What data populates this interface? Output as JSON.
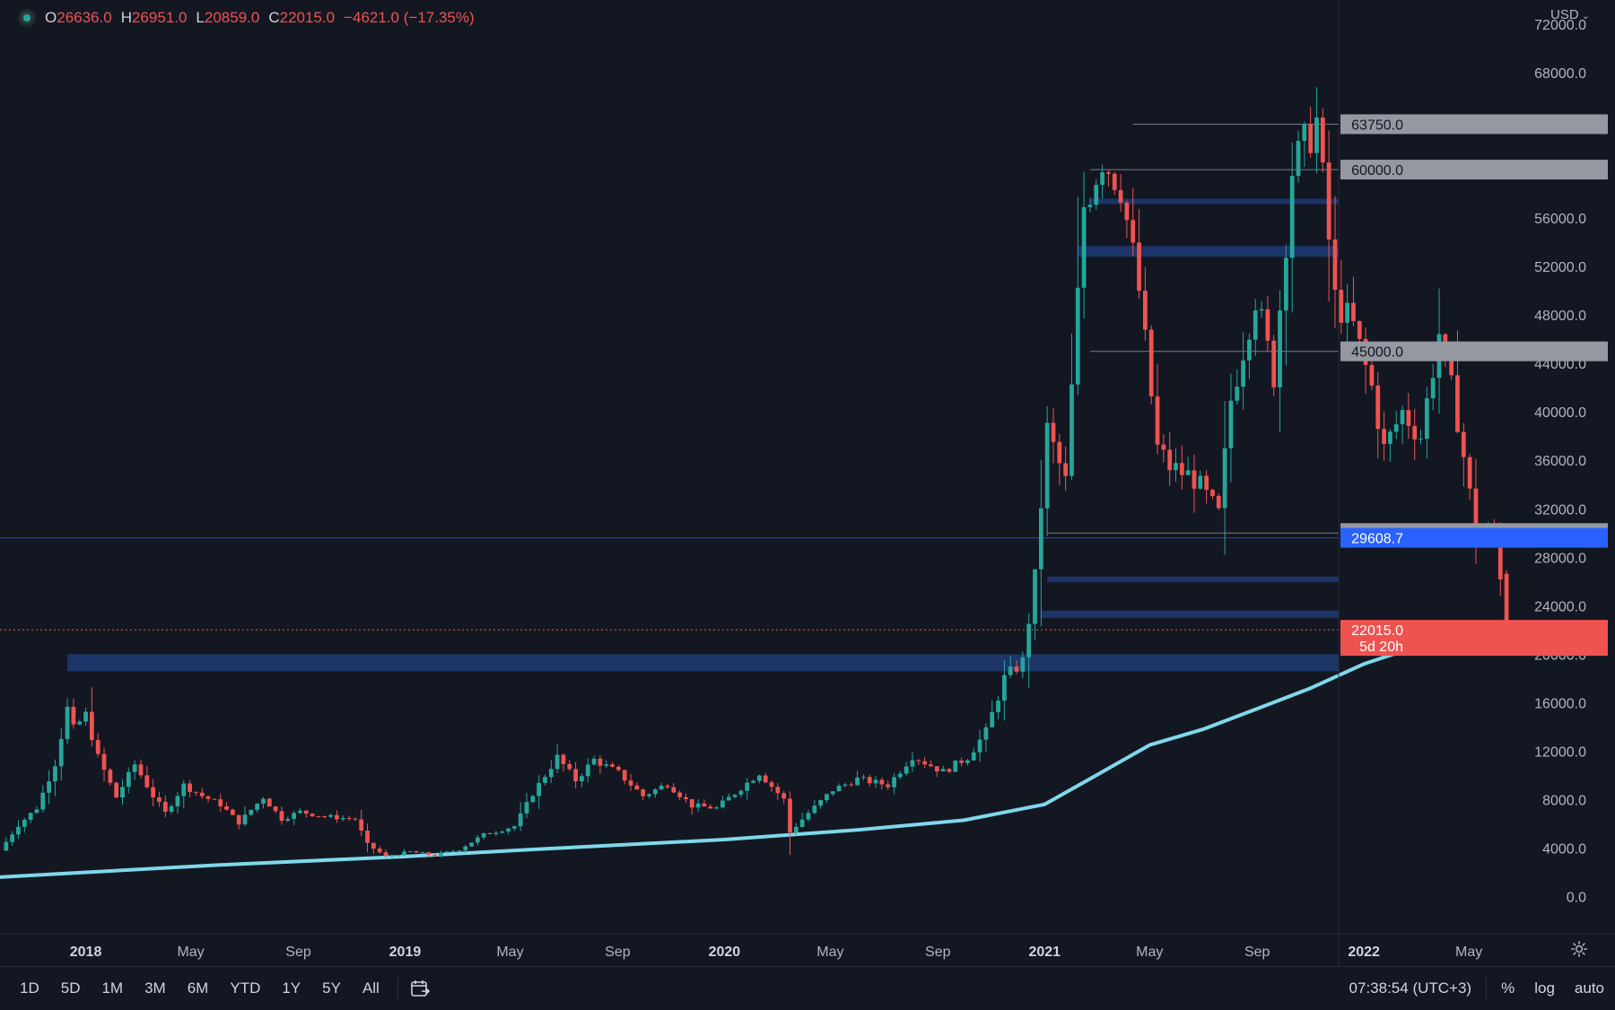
{
  "header": {
    "ohlc": [
      {
        "label": "O",
        "value": "26636.0"
      },
      {
        "label": "H",
        "value": "26951.0"
      },
      {
        "label": "L",
        "value": "20859.0"
      },
      {
        "label": "C",
        "value": "22015.0"
      }
    ],
    "change": "−4621.0 (−17.35%)",
    "currency": "USD"
  },
  "chart_data": {
    "type": "candlestick",
    "title": "",
    "interval": "1W",
    "ylim": [
      -3000,
      74000
    ],
    "xlim": [
      "2017-09-25",
      "2022-10-15"
    ],
    "y_ticks": [
      0,
      4000,
      8000,
      12000,
      16000,
      20000,
      24000,
      28000,
      32000,
      36000,
      40000,
      44000,
      48000,
      52000,
      56000,
      60000,
      64000,
      68000,
      72000
    ],
    "y_tick_labels": [
      "0.0",
      "4000.0",
      "8000.0",
      "12000.0",
      "16000.0",
      "20000.0",
      "24000.0",
      "28000.0",
      "32000.0",
      "36000.0",
      "40000.0",
      "44000.0",
      "48000.0",
      "52000.0",
      "56000.0",
      "60000.0",
      "64000.0",
      "68000.0",
      "72000.0"
    ],
    "x_ticks": [
      {
        "date": "2018-01-01",
        "label": "2018",
        "bold": true
      },
      {
        "date": "2018-05-01",
        "label": "May",
        "bold": false
      },
      {
        "date": "2018-09-01",
        "label": "Sep",
        "bold": false
      },
      {
        "date": "2019-01-01",
        "label": "2019",
        "bold": true
      },
      {
        "date": "2019-05-01",
        "label": "May",
        "bold": false
      },
      {
        "date": "2019-09-01",
        "label": "Sep",
        "bold": false
      },
      {
        "date": "2020-01-01",
        "label": "2020",
        "bold": true
      },
      {
        "date": "2020-05-01",
        "label": "May",
        "bold": false
      },
      {
        "date": "2020-09-01",
        "label": "Sep",
        "bold": false
      },
      {
        "date": "2021-01-01",
        "label": "2021",
        "bold": true
      },
      {
        "date": "2021-05-01",
        "label": "May",
        "bold": false
      },
      {
        "date": "2021-09-01",
        "label": "Sep",
        "bold": false
      },
      {
        "date": "2022-01-01",
        "label": "2022",
        "bold": true
      },
      {
        "date": "2022-05-01",
        "label": "May",
        "bold": false
      }
    ],
    "price_path": [
      [
        "2017-09-25",
        3800
      ],
      [
        "2017-10-16",
        5900
      ],
      [
        "2017-11-06",
        7300
      ],
      [
        "2017-11-27",
        11000
      ],
      [
        "2017-12-11",
        15500
      ],
      [
        "2017-12-18",
        13800
      ],
      [
        "2018-01-01",
        15000
      ],
      [
        "2018-01-15",
        11500
      ],
      [
        "2018-02-05",
        8200
      ],
      [
        "2018-02-26",
        10900
      ],
      [
        "2018-03-19",
        8300
      ],
      [
        "2018-04-02",
        6900
      ],
      [
        "2018-04-23",
        9200
      ],
      [
        "2018-05-14",
        8300
      ],
      [
        "2018-06-04",
        7600
      ],
      [
        "2018-06-25",
        6100
      ],
      [
        "2018-07-23",
        8200
      ],
      [
        "2018-08-13",
        6400
      ],
      [
        "2018-09-03",
        7000
      ],
      [
        "2018-10-01",
        6600
      ],
      [
        "2018-11-05",
        6400
      ],
      [
        "2018-11-19",
        4300
      ],
      [
        "2018-12-10",
        3300
      ],
      [
        "2019-01-07",
        3700
      ],
      [
        "2019-02-04",
        3400
      ],
      [
        "2019-03-04",
        3900
      ],
      [
        "2019-04-01",
        5100
      ],
      [
        "2019-05-06",
        5800
      ],
      [
        "2019-05-27",
        8500
      ],
      [
        "2019-06-24",
        11500
      ],
      [
        "2019-07-15",
        9600
      ],
      [
        "2019-08-05",
        11300
      ],
      [
        "2019-09-02",
        10200
      ],
      [
        "2019-09-30",
        8300
      ],
      [
        "2019-10-28",
        9300
      ],
      [
        "2019-11-25",
        7500
      ],
      [
        "2019-12-23",
        7300
      ],
      [
        "2020-02-10",
        10200
      ],
      [
        "2020-03-09",
        8000
      ],
      [
        "2020-03-16",
        5300
      ],
      [
        "2020-04-06",
        6900
      ],
      [
        "2020-05-04",
        8800
      ],
      [
        "2020-06-01",
        9700
      ],
      [
        "2020-07-06",
        9200
      ],
      [
        "2020-08-03",
        11600
      ],
      [
        "2020-09-07",
        10300
      ],
      [
        "2020-10-05",
        11500
      ],
      [
        "2020-10-26",
        13600
      ],
      [
        "2020-11-16",
        18000
      ],
      [
        "2020-12-07",
        19400
      ],
      [
        "2020-12-21",
        26300
      ],
      [
        "2021-01-04",
        38500
      ],
      [
        "2021-01-25",
        34200
      ],
      [
        "2021-02-15",
        57000
      ],
      [
        "2021-03-08",
        61000
      ],
      [
        "2021-03-29",
        58700
      ],
      [
        "2021-04-19",
        50000
      ],
      [
        "2021-05-10",
        37000
      ],
      [
        "2021-05-24",
        35500
      ],
      [
        "2021-06-21",
        34500
      ],
      [
        "2021-07-19",
        31500
      ],
      [
        "2021-08-02",
        41000
      ],
      [
        "2021-08-30",
        49500
      ],
      [
        "2021-09-20",
        43000
      ],
      [
        "2021-10-11",
        60000
      ],
      [
        "2021-11-08",
        64000
      ],
      [
        "2021-11-29",
        49300
      ],
      [
        "2021-12-20",
        47000
      ],
      [
        "2022-01-10",
        42000
      ],
      [
        "2022-01-24",
        36900
      ],
      [
        "2022-02-14",
        40000
      ],
      [
        "2022-03-07",
        38000
      ],
      [
        "2022-03-28",
        46500
      ],
      [
        "2022-04-18",
        39500
      ],
      [
        "2022-05-09",
        30000
      ],
      [
        "2022-05-30",
        29900
      ],
      [
        "2022-06-06",
        26600
      ],
      [
        "2022-06-13",
        22015
      ]
    ],
    "last_candle": {
      "date": "2022-06-13",
      "open": 26636.0,
      "high": 26951.0,
      "low": 20859.0,
      "close": 22015.0
    },
    "moving_average": [
      [
        "2017-09-25",
        1600
      ],
      [
        "2018-01-01",
        2000
      ],
      [
        "2018-06-01",
        2600
      ],
      [
        "2019-01-01",
        3300
      ],
      [
        "2019-06-01",
        3900
      ],
      [
        "2020-01-01",
        4700
      ],
      [
        "2020-06-01",
        5500
      ],
      [
        "2020-10-01",
        6300
      ],
      [
        "2021-01-01",
        7600
      ],
      [
        "2021-03-01",
        10000
      ],
      [
        "2021-05-01",
        12500
      ],
      [
        "2021-07-01",
        13800
      ],
      [
        "2021-09-01",
        15500
      ],
      [
        "2021-11-01",
        17200
      ],
      [
        "2022-01-01",
        19200
      ],
      [
        "2022-03-01",
        20600
      ],
      [
        "2022-05-01",
        21500
      ],
      [
        "2022-06-13",
        22300
      ]
    ],
    "support_zones": [
      {
        "from": 18600,
        "to": 20000,
        "start": "2017-12-11"
      },
      {
        "from": 23000,
        "to": 23600,
        "start": "2020-12-28"
      },
      {
        "from": 26000,
        "to": 26400,
        "start": "2021-01-04"
      },
      {
        "from": 52800,
        "to": 53700,
        "start": "2021-02-08"
      },
      {
        "from": 57200,
        "to": 57600,
        "start": "2021-02-22"
      }
    ],
    "horizontal_lines": [
      {
        "value": 63750,
        "label": "63750.0",
        "start": "2021-04-12"
      },
      {
        "value": 60000,
        "label": "60000.0",
        "start": "2021-02-22"
      },
      {
        "value": 45000,
        "label": "45000.0",
        "start": "2021-02-22"
      },
      {
        "value": 30000,
        "label": "30000.0",
        "start": "2021-01-04"
      }
    ],
    "price_line": {
      "value": 29608.7,
      "label": "29608.7",
      "color": "#2962ff"
    },
    "last_price": {
      "value": 22015.0,
      "label": "22015.0",
      "countdown": "5d 20h",
      "color": "#ef5350"
    },
    "colors": {
      "up": "#26a69a",
      "down": "#ef5350",
      "ma": "#7fd8ea",
      "zone": "#1e3a74"
    }
  },
  "bottom_bar": {
    "ranges": [
      "1D",
      "5D",
      "1M",
      "3M",
      "6M",
      "YTD",
      "1Y",
      "5Y",
      "All"
    ],
    "time": "07:38:54 (UTC+3)",
    "percent_label": "%",
    "log_label": "log",
    "auto_label": "auto"
  }
}
